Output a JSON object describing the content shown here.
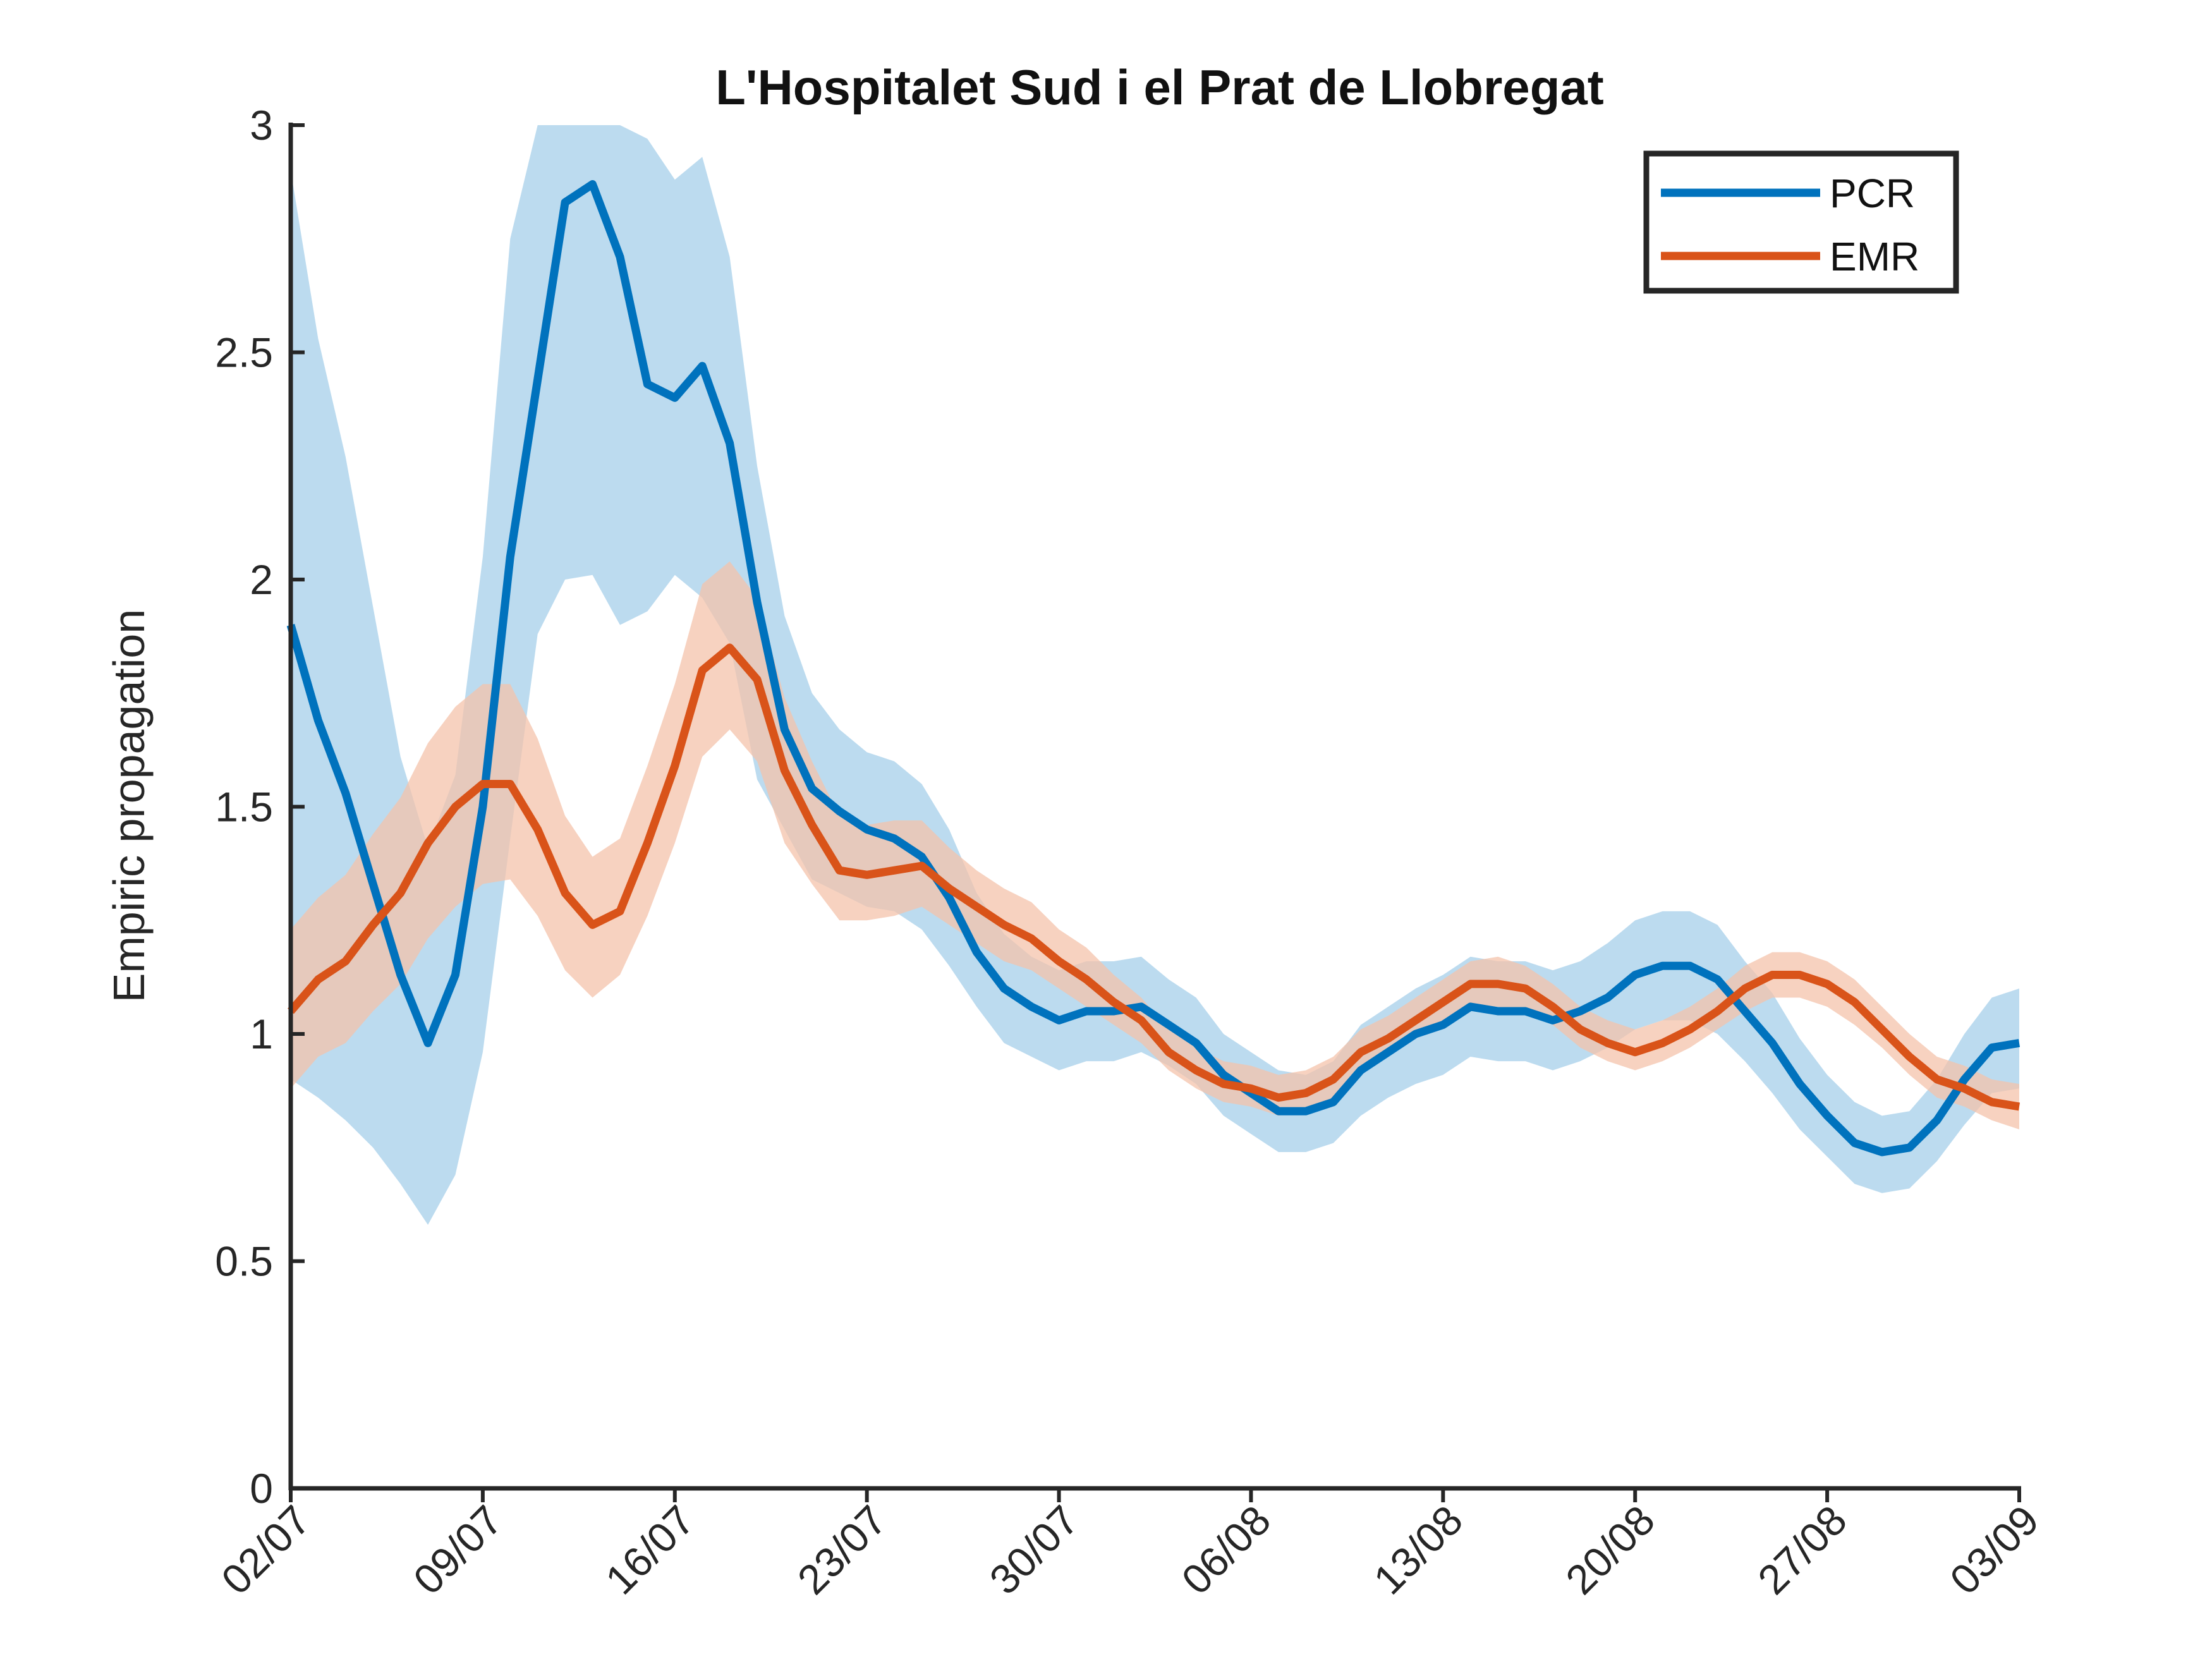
{
  "chart_data": {
    "type": "line",
    "title": "L'Hospitalet Sud i el Prat de Llobregat",
    "xlabel": "",
    "ylabel": "Empiric propagation",
    "ylim": [
      0,
      3
    ],
    "yticks": [
      0,
      0.5,
      1,
      1.5,
      2,
      2.5,
      3
    ],
    "ytick_labels": [
      "0",
      "0.5",
      "1",
      "1.5",
      "2",
      "2.5",
      "3"
    ],
    "xticks": [
      "02/07",
      "09/07",
      "16/07",
      "23/07",
      "30/07",
      "06/08",
      "13/08",
      "20/08",
      "27/08",
      "03/09"
    ],
    "legend": {
      "position": "top-right",
      "entries": [
        "PCR",
        "EMR"
      ]
    },
    "grid": false,
    "series": [
      {
        "name": "PCR",
        "color": "#0072BD",
        "band_color": "#A6CFE9",
        "x": [
          "02/07",
          "03/07",
          "04/07",
          "05/07",
          "06/07",
          "07/07",
          "08/07",
          "09/07",
          "10/07",
          "11/07",
          "12/07",
          "13/07",
          "14/07",
          "15/07",
          "16/07",
          "17/07",
          "18/07",
          "19/07",
          "20/07",
          "21/07",
          "22/07",
          "23/07",
          "24/07",
          "25/07",
          "26/07",
          "27/07",
          "28/07",
          "29/07",
          "30/07",
          "31/07",
          "01/08",
          "02/08",
          "03/08",
          "04/08",
          "05/08",
          "06/08",
          "07/08",
          "08/08",
          "09/08",
          "10/08",
          "11/08",
          "12/08",
          "13/08",
          "14/08",
          "15/08",
          "16/08",
          "17/08",
          "18/08",
          "19/08",
          "20/08",
          "21/08",
          "22/08",
          "23/08",
          "24/08",
          "25/08",
          "26/08",
          "27/08",
          "28/08",
          "29/08",
          "30/08",
          "31/08",
          "01/09",
          "02/09",
          "03/09"
        ],
        "values": [
          1.9,
          1.69,
          1.53,
          1.33,
          1.13,
          0.98,
          1.13,
          1.5,
          2.05,
          2.44,
          2.83,
          2.87,
          2.71,
          2.43,
          2.4,
          2.47,
          2.3,
          1.95,
          1.67,
          1.54,
          1.49,
          1.45,
          1.43,
          1.39,
          1.3,
          1.18,
          1.1,
          1.06,
          1.03,
          1.05,
          1.05,
          1.06,
          1.02,
          0.98,
          0.91,
          0.87,
          0.83,
          0.83,
          0.85,
          0.92,
          0.96,
          1.0,
          1.02,
          1.06,
          1.05,
          1.05,
          1.03,
          1.05,
          1.08,
          1.13,
          1.15,
          1.15,
          1.12,
          1.05,
          0.98,
          0.89,
          0.82,
          0.76,
          0.74,
          0.75,
          0.81,
          0.9,
          0.97,
          0.98
        ],
        "lower": [
          0.9,
          0.86,
          0.81,
          0.75,
          0.67,
          0.58,
          0.69,
          0.96,
          1.43,
          1.88,
          2.0,
          2.01,
          1.9,
          1.93,
          2.01,
          1.96,
          1.86,
          1.56,
          1.45,
          1.34,
          1.31,
          1.28,
          1.27,
          1.23,
          1.15,
          1.06,
          0.98,
          0.95,
          0.92,
          0.94,
          0.94,
          0.96,
          0.93,
          0.89,
          0.82,
          0.78,
          0.74,
          0.74,
          0.76,
          0.82,
          0.86,
          0.89,
          0.91,
          0.95,
          0.94,
          0.94,
          0.92,
          0.94,
          0.97,
          1.01,
          1.03,
          1.03,
          1.0,
          0.94,
          0.87,
          0.79,
          0.73,
          0.67,
          0.65,
          0.66,
          0.72,
          0.8,
          0.87,
          0.88
        ],
        "upper": [
          2.9,
          2.53,
          2.27,
          1.94,
          1.61,
          1.41,
          1.57,
          2.05,
          2.75,
          3.05,
          3.07,
          3.07,
          3.06,
          2.97,
          2.88,
          2.93,
          2.71,
          2.25,
          1.92,
          1.75,
          1.67,
          1.62,
          1.6,
          1.55,
          1.45,
          1.31,
          1.22,
          1.17,
          1.14,
          1.16,
          1.16,
          1.17,
          1.12,
          1.08,
          1.0,
          0.96,
          0.92,
          0.91,
          0.94,
          1.02,
          1.06,
          1.1,
          1.13,
          1.17,
          1.16,
          1.16,
          1.14,
          1.16,
          1.2,
          1.25,
          1.27,
          1.27,
          1.24,
          1.16,
          1.09,
          0.99,
          0.91,
          0.85,
          0.82,
          0.83,
          0.9,
          1.0,
          1.08,
          1.1
        ]
      },
      {
        "name": "EMR",
        "color": "#D95319",
        "band_color": "#F4C3AB",
        "x": [
          "02/07",
          "03/07",
          "04/07",
          "05/07",
          "06/07",
          "07/07",
          "08/07",
          "09/07",
          "10/07",
          "11/07",
          "12/07",
          "13/07",
          "14/07",
          "15/07",
          "16/07",
          "17/07",
          "18/07",
          "19/07",
          "20/07",
          "21/07",
          "22/07",
          "23/07",
          "24/07",
          "25/07",
          "26/07",
          "27/07",
          "28/07",
          "29/07",
          "30/07",
          "31/07",
          "01/08",
          "02/08",
          "03/08",
          "04/08",
          "05/08",
          "06/08",
          "07/08",
          "08/08",
          "09/08",
          "10/08",
          "11/08",
          "12/08",
          "13/08",
          "14/08",
          "15/08",
          "16/08",
          "17/08",
          "18/08",
          "19/08",
          "20/08",
          "21/08",
          "22/08",
          "23/08",
          "24/08",
          "25/08",
          "26/08",
          "27/08",
          "28/08",
          "29/08",
          "30/08",
          "31/08",
          "01/09",
          "02/09",
          "03/09"
        ],
        "values": [
          1.05,
          1.12,
          1.16,
          1.24,
          1.31,
          1.42,
          1.5,
          1.55,
          1.55,
          1.45,
          1.31,
          1.24,
          1.27,
          1.42,
          1.59,
          1.8,
          1.85,
          1.78,
          1.58,
          1.46,
          1.36,
          1.35,
          1.36,
          1.37,
          1.32,
          1.28,
          1.24,
          1.21,
          1.16,
          1.12,
          1.07,
          1.03,
          0.96,
          0.92,
          0.89,
          0.88,
          0.86,
          0.87,
          0.9,
          0.96,
          0.99,
          1.03,
          1.07,
          1.11,
          1.11,
          1.1,
          1.06,
          1.01,
          0.98,
          0.96,
          0.98,
          1.01,
          1.05,
          1.1,
          1.13,
          1.13,
          1.11,
          1.07,
          1.01,
          0.95,
          0.9,
          0.88,
          0.85,
          0.84
        ],
        "lower": [
          0.88,
          0.95,
          0.98,
          1.05,
          1.11,
          1.21,
          1.28,
          1.33,
          1.34,
          1.26,
          1.14,
          1.08,
          1.13,
          1.26,
          1.42,
          1.61,
          1.67,
          1.6,
          1.42,
          1.33,
          1.25,
          1.25,
          1.26,
          1.28,
          1.24,
          1.2,
          1.16,
          1.14,
          1.1,
          1.06,
          1.02,
          0.98,
          0.92,
          0.88,
          0.85,
          0.84,
          0.82,
          0.83,
          0.86,
          0.92,
          0.95,
          0.99,
          1.03,
          1.06,
          1.06,
          1.05,
          1.02,
          0.97,
          0.94,
          0.92,
          0.94,
          0.97,
          1.01,
          1.05,
          1.08,
          1.08,
          1.06,
          1.02,
          0.97,
          0.91,
          0.86,
          0.84,
          0.81,
          0.79
        ],
        "upper": [
          1.23,
          1.3,
          1.35,
          1.44,
          1.52,
          1.64,
          1.72,
          1.77,
          1.77,
          1.65,
          1.48,
          1.39,
          1.43,
          1.59,
          1.77,
          1.99,
          2.04,
          1.96,
          1.74,
          1.6,
          1.48,
          1.46,
          1.47,
          1.47,
          1.41,
          1.36,
          1.32,
          1.29,
          1.23,
          1.19,
          1.13,
          1.08,
          1.01,
          0.97,
          0.94,
          0.93,
          0.91,
          0.92,
          0.95,
          1.01,
          1.04,
          1.08,
          1.12,
          1.16,
          1.17,
          1.15,
          1.11,
          1.06,
          1.03,
          1.01,
          1.03,
          1.06,
          1.1,
          1.15,
          1.18,
          1.18,
          1.16,
          1.12,
          1.06,
          1.0,
          0.95,
          0.93,
          0.9,
          0.89
        ]
      }
    ]
  }
}
